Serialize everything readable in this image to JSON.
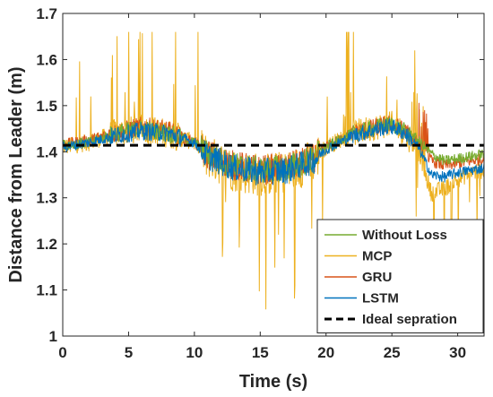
{
  "chart_data": {
    "type": "line",
    "title": "",
    "xlabel": "Time (s)",
    "ylabel": "Distance from Leader (m)",
    "xlim": [
      0,
      32
    ],
    "ylim": [
      1.0,
      1.7
    ],
    "xticks": [
      0,
      5,
      10,
      15,
      20,
      25,
      30
    ],
    "yticks": [
      1.0,
      1.1,
      1.2,
      1.3,
      1.4,
      1.5,
      1.6,
      1.7
    ],
    "xtick_labels": [
      "0",
      "5",
      "10",
      "15",
      "20",
      "25",
      "30"
    ],
    "ytick_labels": [
      "1",
      "1.1",
      "1.2",
      "1.3",
      "1.4",
      "1.5",
      "1.6",
      "1.7"
    ],
    "grid": false,
    "legend_position": "bottom-right",
    "series": [
      {
        "name": "Without Loss",
        "color": "#77AC30",
        "style": "noisy",
        "x": [
          0,
          2,
          4,
          6,
          8,
          10,
          11,
          13,
          15,
          17,
          19,
          20,
          21,
          22,
          24,
          25,
          26,
          27,
          28,
          29,
          30,
          31,
          32
        ],
        "y": [
          1.415,
          1.42,
          1.44,
          1.45,
          1.44,
          1.42,
          1.395,
          1.37,
          1.36,
          1.365,
          1.385,
          1.41,
          1.425,
          1.44,
          1.455,
          1.46,
          1.445,
          1.425,
          1.395,
          1.38,
          1.385,
          1.39,
          1.395
        ]
      },
      {
        "name": "MCP",
        "color": "#EDB120",
        "style": "noisy",
        "x": [
          0,
          2,
          4,
          6,
          8,
          10,
          11,
          13,
          15,
          17,
          19,
          20,
          21,
          22,
          24,
          25,
          26,
          27,
          28,
          29,
          30,
          31,
          32
        ],
        "y": [
          1.41,
          1.42,
          1.44,
          1.45,
          1.44,
          1.42,
          1.39,
          1.36,
          1.35,
          1.355,
          1.38,
          1.41,
          1.425,
          1.44,
          1.455,
          1.46,
          1.44,
          1.4,
          1.31,
          1.32,
          1.34,
          1.355,
          1.36
        ]
      },
      {
        "name": "GRU",
        "color": "#D95319",
        "style": "noisy",
        "x": [
          0,
          2,
          4,
          6,
          8,
          10,
          11,
          13,
          15,
          17,
          19,
          20,
          21,
          22,
          24,
          25,
          26,
          27,
          28,
          29,
          30,
          31,
          32
        ],
        "y": [
          1.415,
          1.425,
          1.44,
          1.455,
          1.445,
          1.42,
          1.395,
          1.37,
          1.36,
          1.365,
          1.385,
          1.41,
          1.425,
          1.44,
          1.455,
          1.46,
          1.445,
          1.42,
          1.38,
          1.37,
          1.375,
          1.38,
          1.385
        ]
      },
      {
        "name": "LSTM",
        "color": "#0072BD",
        "style": "noisy",
        "x": [
          0,
          2,
          4,
          6,
          8,
          10,
          11,
          13,
          15,
          17,
          19,
          20,
          21,
          22,
          24,
          25,
          26,
          27,
          28,
          29,
          30,
          31,
          32
        ],
        "y": [
          1.41,
          1.42,
          1.435,
          1.445,
          1.44,
          1.42,
          1.39,
          1.365,
          1.355,
          1.36,
          1.38,
          1.405,
          1.42,
          1.435,
          1.45,
          1.455,
          1.44,
          1.41,
          1.35,
          1.345,
          1.355,
          1.36,
          1.365
        ]
      },
      {
        "name": "Ideal sepration",
        "color": "#000000",
        "style": "dashed",
        "x": [
          0,
          32
        ],
        "y": [
          1.414,
          1.414
        ]
      }
    ]
  }
}
